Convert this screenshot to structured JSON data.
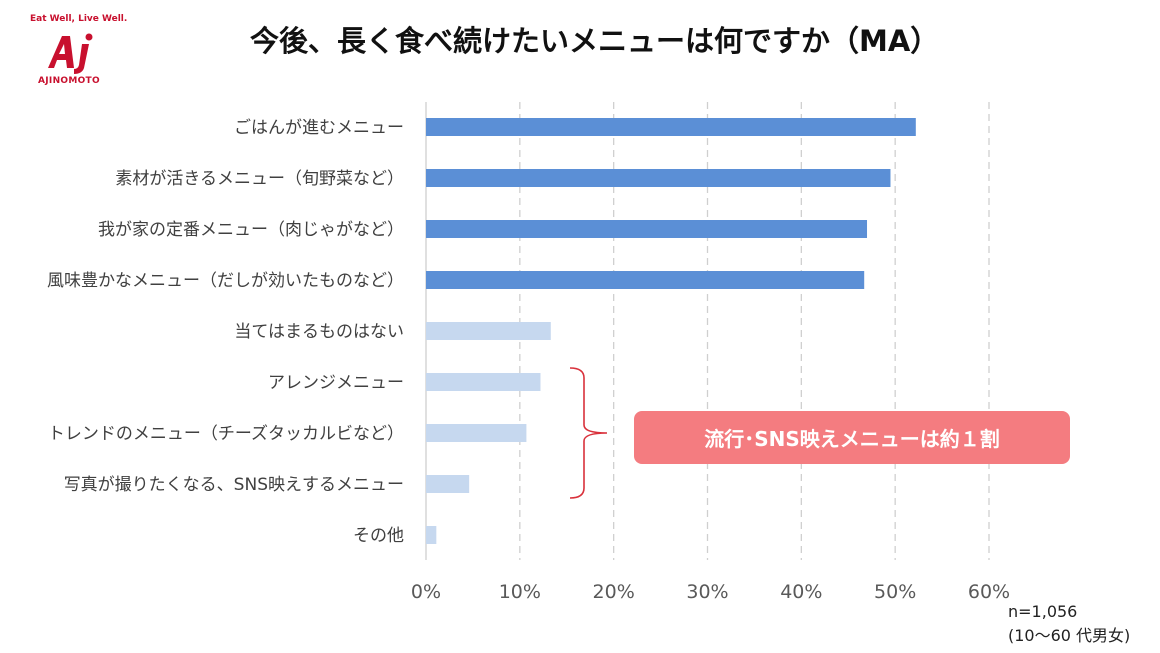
{
  "logo": {
    "tagline": "Eat Well, Live Well.",
    "wordmark": "AJINOMOTO",
    "color": "#c8102e"
  },
  "title": "今後、長く食べ続けたいメニューは何ですか（MA）",
  "chart_data": {
    "type": "bar",
    "orientation": "horizontal",
    "title": "今後、長く食べ続けたいメニューは何ですか（MA）",
    "categories": [
      "ごはんが進むメニュー",
      "素材が活きるメニュー（旬野菜など）",
      "我が家の定番メニュー（肉じゃがなど）",
      "風味豊かなメニュー（だしが効いたものなど）",
      "当てはまるものはない",
      "アレンジメニュー",
      "トレンドのメニュー（チーズタッカルビなど）",
      "写真が撮りたくなる、SNS映えするメニュー",
      "その他"
    ],
    "values": [
      52.2,
      49.5,
      47.0,
      46.7,
      13.3,
      12.2,
      10.7,
      4.6,
      1.1
    ],
    "unit": "%",
    "xlim": [
      0,
      60
    ],
    "ticks": [
      0,
      10,
      20,
      30,
      40,
      50,
      60
    ],
    "tick_labels": [
      "0%",
      "10%",
      "20%",
      "30%",
      "40%",
      "50%",
      "60%"
    ],
    "grid": "vertical dashed",
    "colors": {
      "highlight": "#5b8fd6",
      "normal": "#c6d8ef",
      "grid": "#cfcfcf",
      "bracket": "#d9313b"
    },
    "highlight_count": 4,
    "bracket_categories": [
      5,
      6,
      7
    ]
  },
  "callout": {
    "text": "流行･SNS映えメニューは約１割",
    "color": "#f47c80"
  },
  "note": {
    "n": "n=1,056",
    "sample": "(10～60 代男女)"
  }
}
